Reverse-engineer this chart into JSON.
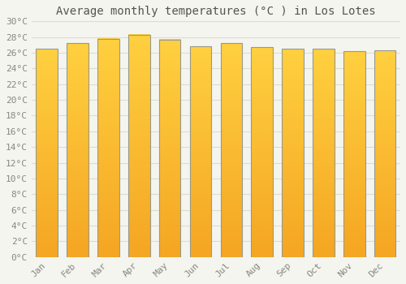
{
  "title": "Average monthly temperatures (°C ) in Los Lotes",
  "months": [
    "Jan",
    "Feb",
    "Mar",
    "Apr",
    "May",
    "Jun",
    "Jul",
    "Aug",
    "Sep",
    "Oct",
    "Nov",
    "Dec"
  ],
  "temperatures": [
    26.5,
    27.2,
    27.8,
    28.3,
    27.7,
    26.8,
    27.2,
    26.7,
    26.5,
    26.5,
    26.2,
    26.3
  ],
  "bar_color_top": "#FFD040",
  "bar_color_bottom": "#F5A623",
  "bar_edge_color": "#999988",
  "ylim": [
    0,
    30
  ],
  "ytick_step": 2,
  "background_color": "#f5f5f0",
  "plot_bg_color": "#f5f5f0",
  "grid_color": "#ddddcc",
  "title_fontsize": 10,
  "tick_fontsize": 8,
  "tick_color": "#888880",
  "font_family": "monospace"
}
